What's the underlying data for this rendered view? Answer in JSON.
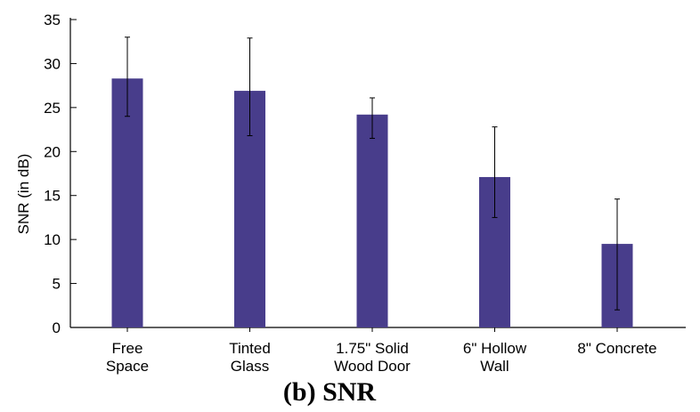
{
  "chart_data": {
    "type": "bar",
    "title": "(b) SNR",
    "xlabel": "",
    "ylabel": "SNR (in dB)",
    "ylim": [
      0,
      35
    ],
    "yticks": [
      0,
      5,
      10,
      15,
      20,
      25,
      30,
      35
    ],
    "categories": [
      [
        "Free",
        "Space"
      ],
      [
        "Tinted",
        "Glass"
      ],
      [
        "1.75\" Solid",
        "Wood Door"
      ],
      [
        "6\" Hollow",
        "Wall"
      ],
      [
        "8\" Concrete"
      ]
    ],
    "values": [
      28.3,
      26.9,
      24.2,
      17.1,
      9.5
    ],
    "error_low": [
      24.0,
      21.8,
      21.5,
      12.5,
      2.0
    ],
    "error_high": [
      33.0,
      32.9,
      26.1,
      22.8,
      14.6
    ],
    "bar_color": "#483d8b",
    "grid": false,
    "legend": "none"
  }
}
